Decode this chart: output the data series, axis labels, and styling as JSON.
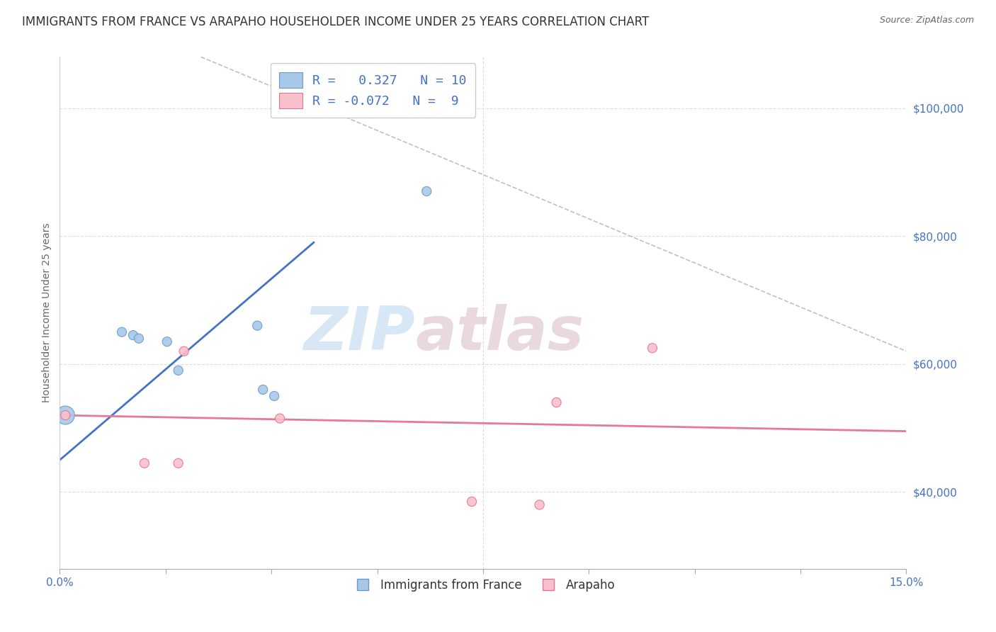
{
  "title": "IMMIGRANTS FROM FRANCE VS ARAPAHO HOUSEHOLDER INCOME UNDER 25 YEARS CORRELATION CHART",
  "source": "Source: ZipAtlas.com",
  "ylabel": "Householder Income Under 25 years",
  "xlim": [
    0.0,
    0.15
  ],
  "ylim": [
    28000,
    108000
  ],
  "xticks": [
    0.0,
    0.01875,
    0.0375,
    0.05625,
    0.075,
    0.09375,
    0.1125,
    0.13125,
    0.15
  ],
  "xticklabels": [
    "0.0%",
    "",
    "",
    "",
    "",
    "",
    "",
    "",
    "15.0%"
  ],
  "yticks": [
    40000,
    60000,
    80000,
    100000
  ],
  "yticklabels": [
    "$40,000",
    "$60,000",
    "$80,000",
    "$100,000"
  ],
  "blue_scatter": {
    "x": [
      0.001,
      0.011,
      0.013,
      0.014,
      0.019,
      0.021,
      0.035,
      0.036,
      0.038,
      0.065
    ],
    "y": [
      52000,
      65000,
      64500,
      64000,
      63500,
      59000,
      66000,
      56000,
      55000,
      87000
    ],
    "sizes": [
      350,
      90,
      90,
      90,
      90,
      90,
      90,
      90,
      90,
      90
    ],
    "color": "#a8c8e8",
    "edgecolor": "#6699cc",
    "R": 0.327,
    "N": 10
  },
  "pink_scatter": {
    "x": [
      0.001,
      0.015,
      0.021,
      0.022,
      0.039,
      0.073,
      0.085,
      0.088,
      0.105
    ],
    "y": [
      52000,
      44500,
      44500,
      62000,
      51500,
      38500,
      38000,
      54000,
      62500
    ],
    "sizes": [
      90,
      90,
      90,
      90,
      90,
      90,
      90,
      90,
      90
    ],
    "color": "#f8c0cc",
    "edgecolor": "#e87090",
    "R": -0.072,
    "N": 9
  },
  "blue_line": {
    "x": [
      0.0,
      0.045
    ],
    "y": [
      45000,
      79000
    ],
    "color": "#4472c4",
    "linewidth": 2.0
  },
  "pink_line": {
    "x": [
      0.0,
      0.15
    ],
    "y": [
      52000,
      49500
    ],
    "color": "#e87898",
    "linewidth": 2.0
  },
  "gray_dashed_line": {
    "x": [
      0.025,
      0.15
    ],
    "y": [
      108000,
      62000
    ],
    "color": "#c0c0c0",
    "linewidth": 1.2,
    "linestyle": "--"
  },
  "legend_blue_label": "R =   0.327   N = 10",
  "legend_pink_label": "R = -0.072   N =  9",
  "watermark_zip": "ZIP",
  "watermark_atlas": "atlas",
  "bg_color": "#ffffff",
  "grid_color": "#dddddd",
  "title_color": "#333333",
  "axis_color": "#4472c4",
  "title_fontsize": 12,
  "axis_label_fontsize": 10,
  "tick_fontsize": 11
}
